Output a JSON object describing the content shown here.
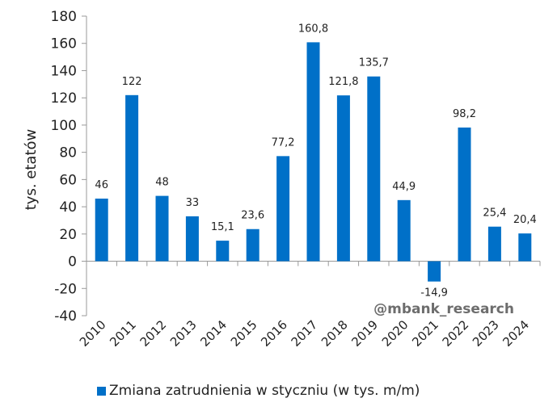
{
  "chart_data": {
    "type": "bar",
    "categories": [
      "2010",
      "2011",
      "2012",
      "2013",
      "2014",
      "2015",
      "2016",
      "2017",
      "2018",
      "2019",
      "2020",
      "2021",
      "2022",
      "2023",
      "2024"
    ],
    "series": [
      {
        "name": "Zmiana zatrudnienia w styczniu (w tys. m/m)",
        "values": [
          46,
          122,
          48,
          33,
          15.1,
          23.6,
          77.2,
          160.8,
          121.8,
          135.7,
          44.9,
          -14.9,
          98.2,
          25.4,
          20.4
        ],
        "labels": [
          "46",
          "122",
          "48",
          "33",
          "15,1",
          "23,6",
          "77,2",
          "160,8",
          "121,8",
          "135,7",
          "44,9",
          "-14,9",
          "98,2",
          "25,4",
          "20,4"
        ],
        "color": "#0070c8"
      }
    ],
    "title": "",
    "xlabel": "",
    "ylabel": "tys. etatów",
    "ylim": [
      -40,
      180
    ],
    "yticks": [
      180,
      160,
      140,
      120,
      100,
      80,
      60,
      40,
      20,
      0,
      -20,
      -40
    ],
    "grid": false,
    "legend": "bottom"
  },
  "watermark": "@mbank_research"
}
